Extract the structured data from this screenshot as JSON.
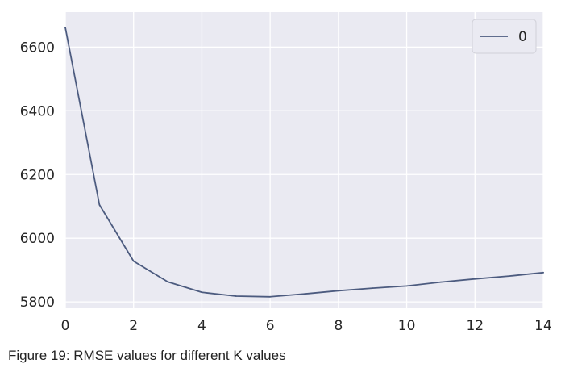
{
  "caption": "Figure 19: RMSE values for different K values",
  "chart_data": {
    "type": "line",
    "title": "",
    "xlabel": "",
    "ylabel": "",
    "x": [
      0,
      1,
      2,
      3,
      4,
      5,
      6,
      7,
      8,
      9,
      10,
      11,
      12,
      13,
      14
    ],
    "series": [
      {
        "name": "0",
        "values": [
          6662,
          6105,
          5928,
          5863,
          5830,
          5818,
          5816,
          5825,
          5835,
          5843,
          5850,
          5862,
          5872,
          5881,
          5892
        ],
        "color": "#4c5b7f"
      }
    ],
    "xlim": [
      0,
      14
    ],
    "ylim": [
      5780,
      6710
    ],
    "xticks": [
      0,
      2,
      4,
      6,
      8,
      10,
      12,
      14
    ],
    "yticks": [
      5800,
      6000,
      6200,
      6400,
      6600
    ],
    "grid": true,
    "legend": "top-right",
    "colors": {
      "background": "#eaeaf2",
      "grid": "#ffffff",
      "line": "#4c5b7f"
    }
  }
}
